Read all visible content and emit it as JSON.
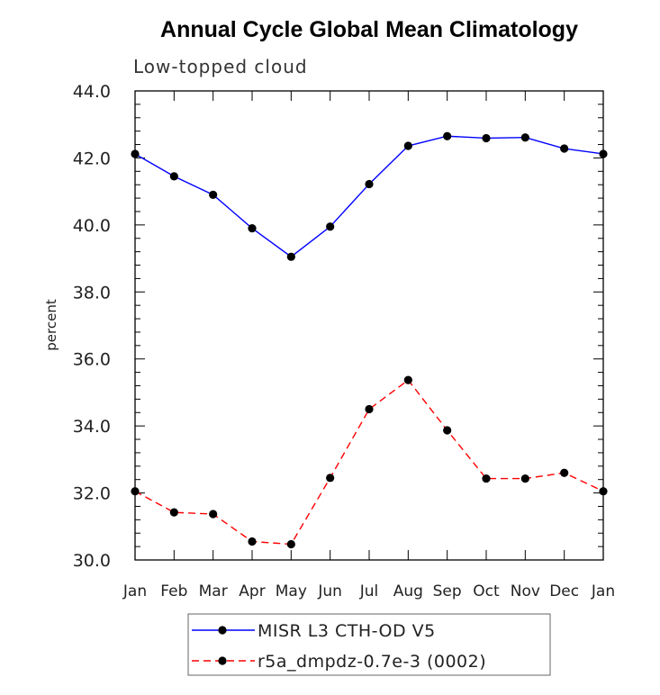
{
  "chart_data": {
    "type": "line",
    "title": "Annual Cycle Global Mean Climatology",
    "subtitle": "Low-topped cloud",
    "xlabel": "",
    "ylabel": "percent",
    "categories": [
      "Jan",
      "Feb",
      "Mar",
      "Apr",
      "May",
      "Jun",
      "Jul",
      "Aug",
      "Sep",
      "Oct",
      "Nov",
      "Dec",
      "Jan"
    ],
    "ylim": [
      30.0,
      44.0
    ],
    "yticks": [
      30.0,
      32.0,
      34.0,
      36.0,
      38.0,
      40.0,
      42.0,
      44.0
    ],
    "ytick_labels": [
      "30.0",
      "32.0",
      "34.0",
      "36.0",
      "38.0",
      "40.0",
      "42.0",
      "44.0"
    ],
    "grid": false,
    "legend_position": "bottom-center",
    "series": [
      {
        "name": "MISR L3 CTH-OD V5",
        "color": "#0000ff",
        "style": "solid",
        "values": [
          42.12,
          41.45,
          40.9,
          39.9,
          39.05,
          39.95,
          41.22,
          42.36,
          42.65,
          42.59,
          42.61,
          42.28,
          42.12
        ]
      },
      {
        "name": "r5a_dmpdz-0.7e-3 (0002)",
        "color": "#ff0000",
        "style": "dashed",
        "values": [
          32.05,
          31.42,
          31.37,
          30.55,
          30.47,
          32.45,
          34.5,
          35.37,
          33.87,
          32.43,
          32.43,
          32.6,
          32.05
        ]
      }
    ]
  }
}
